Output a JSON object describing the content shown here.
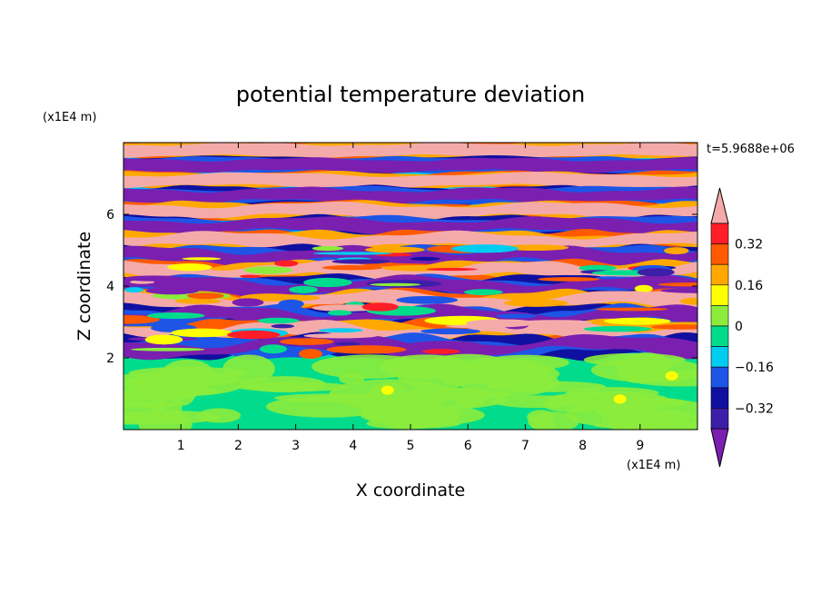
{
  "chart_data": {
    "type": "heatmap",
    "title": "potential temperature deviation",
    "xlabel": "X coordinate",
    "ylabel": "Z coordinate",
    "x_unit": "(x1E4 m)",
    "y_unit": "(x1E4 m)",
    "timestamp": "t=5.9688e+06",
    "xlim": [
      0,
      10
    ],
    "ylim": [
      0,
      8
    ],
    "x_ticks": [
      "1",
      "2",
      "3",
      "4",
      "5",
      "6",
      "7",
      "8",
      "9"
    ],
    "y_ticks": [
      "2",
      "4",
      "6"
    ],
    "colorbar": {
      "levels": [
        -0.48,
        -0.4,
        -0.32,
        -0.24,
        -0.16,
        -0.08,
        0,
        0.08,
        0.16,
        0.24,
        0.32,
        0.4,
        0.48
      ],
      "tick_labels": [
        "0.32",
        "0.16",
        "0",
        "-0.16",
        "-0.32"
      ],
      "extend": "both",
      "colors": [
        "#7a1fb0",
        "#3c1ea8",
        "#1010a0",
        "#1e55e6",
        "#00ccf0",
        "#00dc8c",
        "#8cec3c",
        "#ffff00",
        "#ffa800",
        "#ff5a00",
        "#ff1e28",
        "#f5aaaa"
      ]
    },
    "layers": [
      {
        "name": "lower_layer",
        "z_range": [
          0,
          2
        ],
        "dominant_values": [
          0,
          0.08
        ],
        "max_value": 0.16
      },
      {
        "name": "stratified_bands",
        "z_range": [
          2,
          8
        ],
        "alternating_values": [
          -0.48,
          0.48
        ],
        "band_count": 14
      }
    ]
  }
}
